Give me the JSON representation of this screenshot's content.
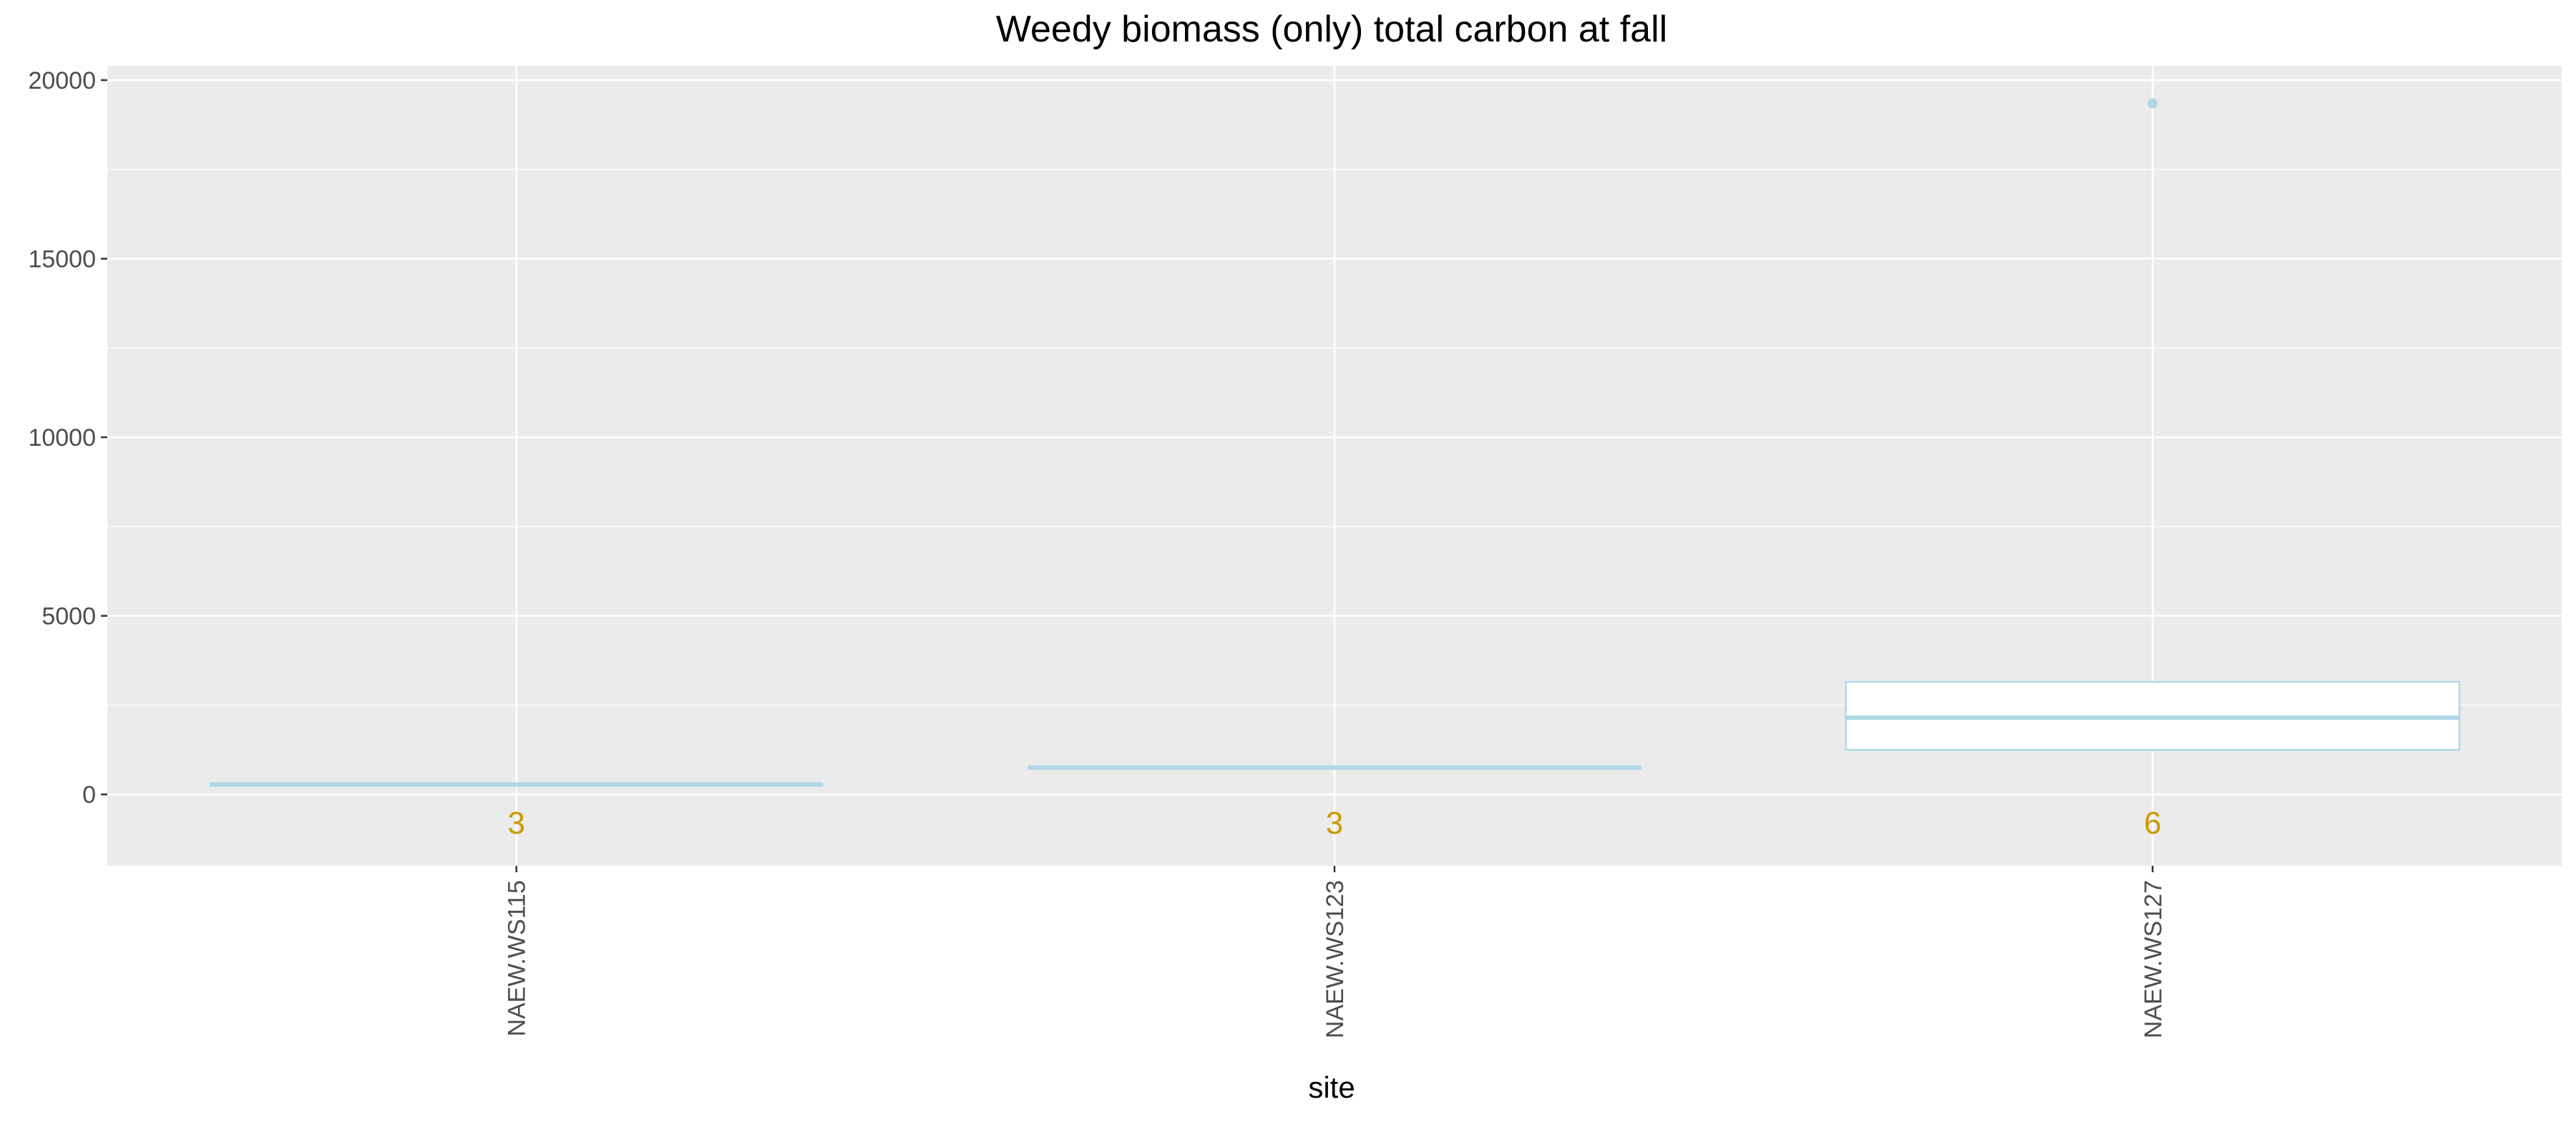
{
  "chart_data": {
    "type": "boxplot",
    "title": "Weedy biomass (only) total carbon at fall",
    "xlabel": "site",
    "ylabel": "",
    "categories": [
      "NAEW.WS115",
      "NAEW.WS123",
      "NAEW.WS127"
    ],
    "ylim": [
      -2000,
      20400
    ],
    "yticks": [
      0,
      5000,
      10000,
      15000,
      20000
    ],
    "boxes": [
      {
        "category": "NAEW.WS115",
        "min": 280,
        "q1": 280,
        "median": 280,
        "q3": 280,
        "max": 280,
        "outliers": [],
        "n": 3
      },
      {
        "category": "NAEW.WS123",
        "min": 750,
        "q1": 750,
        "median": 750,
        "q3": 750,
        "max": 750,
        "outliers": [],
        "n": 3
      },
      {
        "category": "NAEW.WS127",
        "min": 1200,
        "q1": 1250,
        "median": 2150,
        "q3": 3150,
        "max": 3150,
        "outliers": [
          19350
        ],
        "n": 6
      }
    ],
    "count_labels": [
      "3",
      "3",
      "6"
    ],
    "grid": true,
    "colors": {
      "panel": "#EBEBEB",
      "grid": "#FFFFFF",
      "box": "#ADD8E6",
      "box_fill": "#FFFFFF",
      "count_text": "#CC9900",
      "tick_text": "#4D4D4D"
    }
  }
}
